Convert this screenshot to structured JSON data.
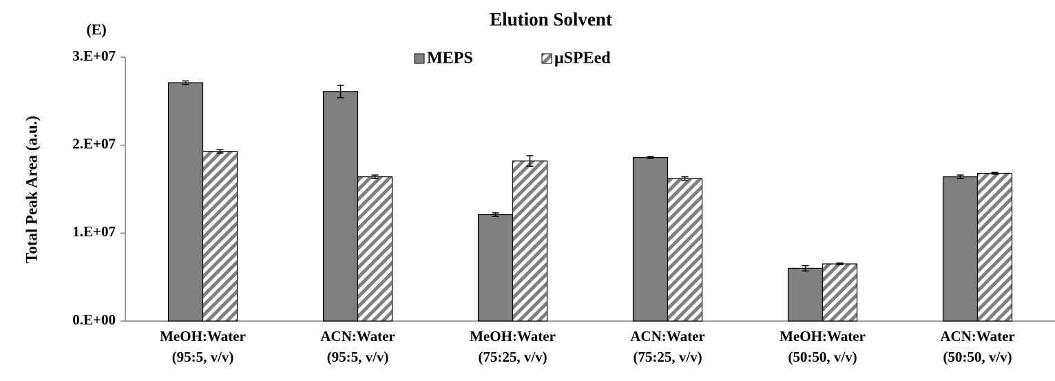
{
  "chart_data": {
    "type": "bar",
    "title": "Elution Solvent",
    "annotation": "(E)",
    "y_label": "Total Peak Area (a.u.)",
    "categories": [
      [
        "MeOH:Water",
        "(95:5, v/v)"
      ],
      [
        "ACN:Water",
        "(95:5, v/v)"
      ],
      [
        "MeOH:Water",
        "(75:25, v/v)"
      ],
      [
        "ACN:Water",
        "(75:25, v/v)"
      ],
      [
        "MeOH:Water",
        "(50:50, v/v)"
      ],
      [
        "ACN:Water",
        "(50:50, v/v)"
      ]
    ],
    "series": [
      {
        "name": "MEPS",
        "color": "#808080",
        "pattern": "solid",
        "values": [
          27100000,
          26100000,
          12100000,
          18600000,
          6000000,
          16400000
        ],
        "errors": [
          200000,
          700000,
          200000,
          100000,
          300000,
          200000
        ]
      },
      {
        "name": "μSPEed",
        "color": "#808080",
        "pattern": "stripes",
        "values": [
          19300000,
          16400000,
          18200000,
          16200000,
          6500000,
          16800000
        ],
        "errors": [
          200000,
          200000,
          600000,
          200000,
          100000,
          100000
        ]
      }
    ],
    "ylim": [
      0,
      30000000
    ],
    "yticks": [
      {
        "value": 0,
        "label": "0.E+00"
      },
      {
        "value": 10000000,
        "label": "1.E+07"
      },
      {
        "value": 20000000,
        "label": "2.E+07"
      },
      {
        "value": 30000000,
        "label": "3.E+07"
      }
    ],
    "legend": "top"
  }
}
